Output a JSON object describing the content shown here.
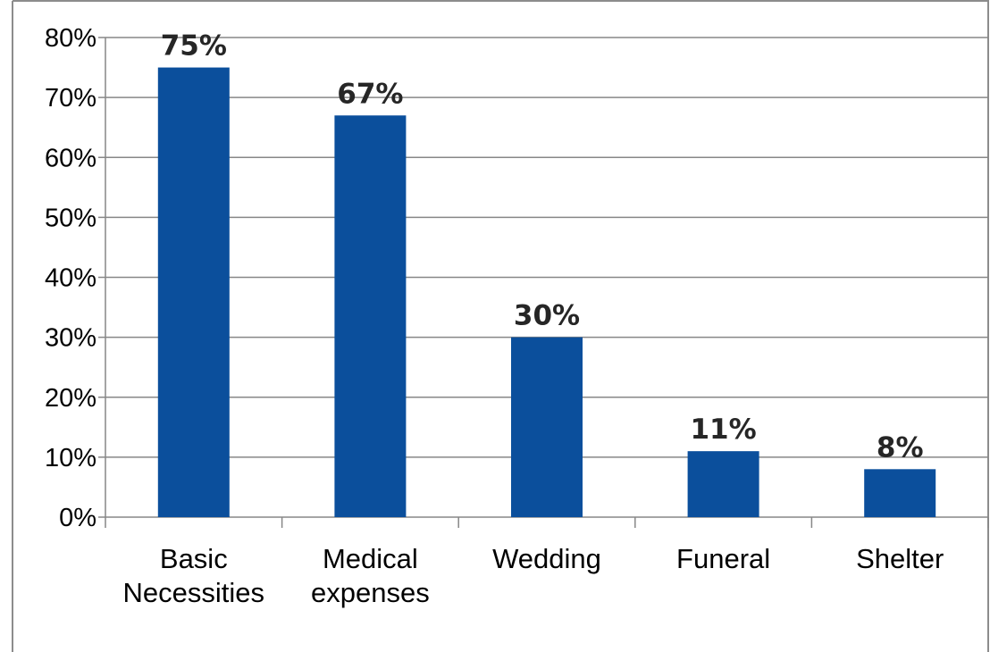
{
  "chart_data": {
    "type": "bar",
    "categories": [
      [
        "Basic",
        "Necessities"
      ],
      [
        "Medical",
        "expenses"
      ],
      [
        "Wedding"
      ],
      [
        "Funeral"
      ],
      [
        "Shelter"
      ]
    ],
    "values": [
      75,
      67,
      30,
      11,
      8
    ],
    "data_labels": [
      "75%",
      "67%",
      "30%",
      "11%",
      "8%"
    ],
    "y_ticks": [
      0,
      10,
      20,
      30,
      40,
      50,
      60,
      70,
      80
    ],
    "y_tick_labels": [
      "0%",
      "10%",
      "20%",
      "30%",
      "40%",
      "50%",
      "60%",
      "70%",
      "80%"
    ],
    "ylim": [
      0,
      80
    ],
    "title": "",
    "xlabel": "",
    "ylabel": "",
    "grid": true,
    "legend": "none",
    "colors": {
      "bar": "#0B4F9C",
      "grid": "#878787",
      "axis": "#878787",
      "frame": "#8C8C8C"
    }
  }
}
